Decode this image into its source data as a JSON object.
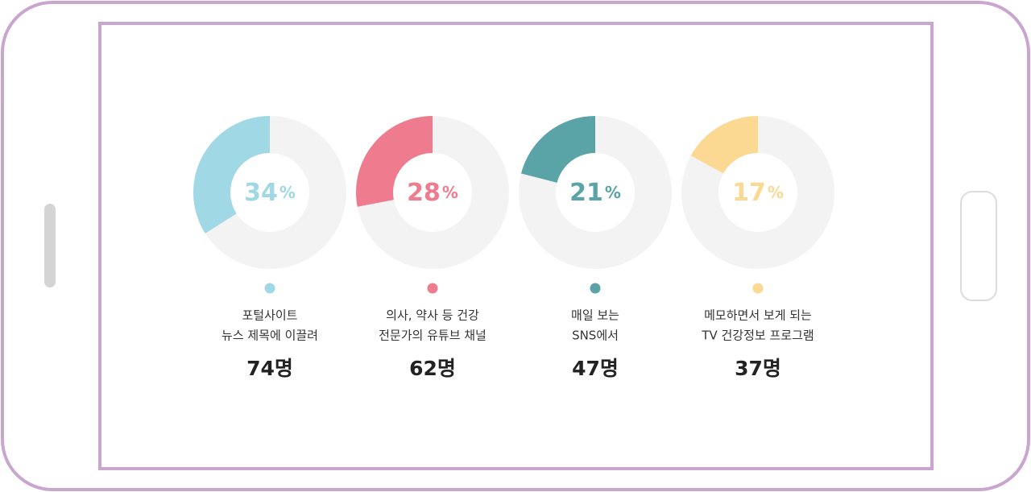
{
  "chart_data": [
    {
      "type": "donut",
      "values": [
        34
      ],
      "value_labels": [
        "34%"
      ],
      "color": "#a0d8e6",
      "label": [
        "포털사이트",
        "뉴스 제목에 이끌려"
      ],
      "count": 74,
      "count_label": "74명"
    },
    {
      "type": "donut",
      "values": [
        28
      ],
      "value_labels": [
        "28%"
      ],
      "color": "#ee7b8e",
      "label": [
        "의사, 약사 등 건강",
        "전문가의 유튜브 채널"
      ],
      "count": 62,
      "count_label": "62명"
    },
    {
      "type": "donut",
      "values": [
        21
      ],
      "value_labels": [
        "21%"
      ],
      "color": "#5aa3a6",
      "label": [
        "매일 보는",
        "SNS에서"
      ],
      "count": 47,
      "count_label": "47명"
    },
    {
      "type": "donut",
      "values": [
        17
      ],
      "value_labels": [
        "17%"
      ],
      "color": "#fbd993",
      "label": [
        "메모하면서 보게 되는",
        "TV 건강정보 프로그램"
      ],
      "count": 37,
      "count_label": "37명"
    }
  ]
}
